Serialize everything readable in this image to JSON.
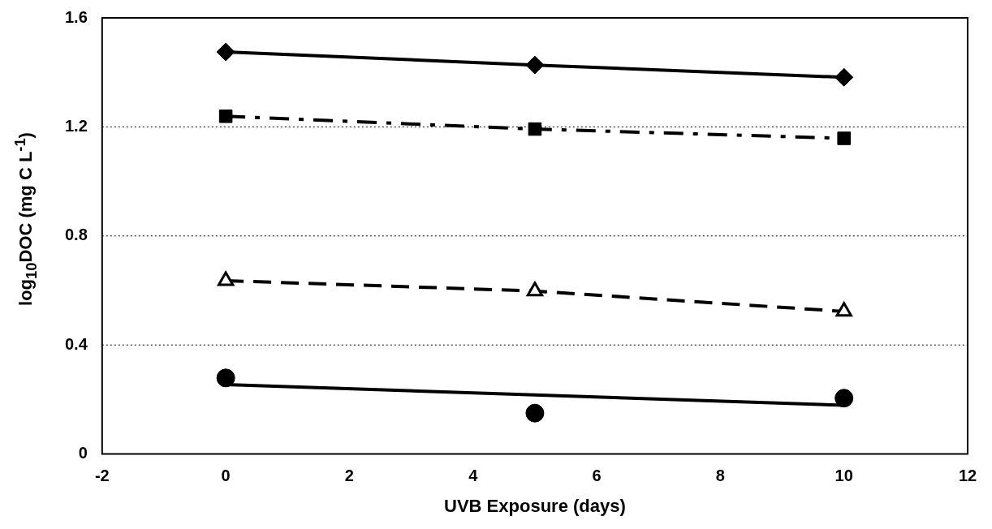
{
  "chart_data": {
    "type": "line",
    "xlabel": "UVB Exposure (days)",
    "ylabel": "log$_{10}$DOC (mg C L$^{-1}$)",
    "xlim": [
      -2,
      12
    ],
    "xticks": [
      -2,
      0,
      2,
      4,
      6,
      8,
      10,
      12
    ],
    "ylim": [
      0,
      1.6
    ],
    "yticks": [
      0,
      0.4,
      0.8,
      1.2,
      1.6
    ],
    "grid": "y",
    "legend": false,
    "series": [
      {
        "type": "line",
        "x": [
          0,
          5,
          10
        ],
        "values": [
          1.475,
          1.427,
          1.382
        ],
        "color": "#000000",
        "marker": "diamond",
        "line_style": "solid"
      },
      {
        "type": "line",
        "x": [
          0,
          5,
          10
        ],
        "values": [
          1.239,
          1.192,
          1.158
        ],
        "color": "#000000",
        "marker": "square",
        "line_style": "dashdot"
      },
      {
        "type": "line",
        "x": [
          0,
          5,
          10
        ],
        "values": [
          0.636,
          0.598,
          0.523
        ],
        "color": "#000000",
        "marker": "triangle",
        "line_style": "dashed"
      },
      {
        "type": "scatter",
        "x": [
          0,
          5,
          10
        ],
        "values": [
          0.279,
          0.15,
          0.205
        ],
        "color": "#000000",
        "marker": "circle"
      },
      {
        "type": "line",
        "x": [
          0,
          10
        ],
        "values": [
          0.255,
          0.179
        ],
        "color": "#000000",
        "marker": "none",
        "line_style": "solid"
      }
    ]
  }
}
